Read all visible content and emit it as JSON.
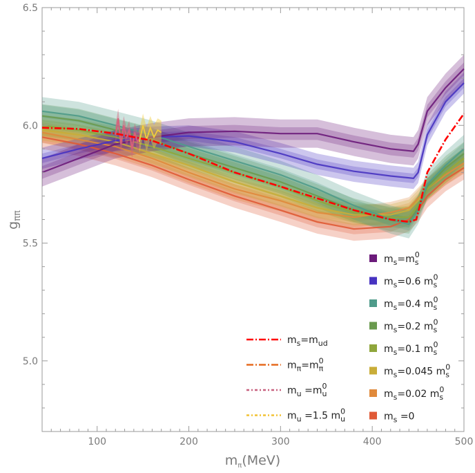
{
  "chart_data": {
    "type": "line",
    "title": "",
    "xlabel": {
      "main": "m",
      "sub": "π",
      "suffix": "(MeV)"
    },
    "ylabel": {
      "main": "g",
      "sub": "ππ"
    },
    "xlim": [
      40,
      500
    ],
    "ylim": [
      4.7,
      6.5
    ],
    "x_ticks": [
      100,
      200,
      300,
      400,
      500
    ],
    "y_ticks": [
      5.0,
      5.5,
      6.0,
      6.5
    ],
    "x_tick_labels": [
      "100",
      "200",
      "300",
      "400",
      "500"
    ],
    "y_tick_labels": [
      "5.0",
      "5.5",
      "6.0",
      "6.5"
    ],
    "grid": false,
    "band_series": [
      {
        "name": "ms=ms0",
        "color": "#6b1a7a",
        "x": [
          40,
          80,
          120,
          160,
          200,
          250,
          300,
          340,
          380,
          420,
          445,
          450,
          460,
          480,
          500
        ],
        "y": [
          5.8,
          5.86,
          5.92,
          5.95,
          5.97,
          5.975,
          5.965,
          5.965,
          5.93,
          5.9,
          5.89,
          5.92,
          6.06,
          6.16,
          6.24
        ],
        "halfwidth": 0.06
      },
      {
        "name": "ms=0.6ms0",
        "color": "#4733c1",
        "x": [
          40,
          80,
          120,
          160,
          200,
          250,
          300,
          340,
          380,
          420,
          445,
          450,
          460,
          480,
          500
        ],
        "y": [
          5.86,
          5.9,
          5.935,
          5.95,
          5.955,
          5.93,
          5.88,
          5.835,
          5.805,
          5.785,
          5.775,
          5.8,
          5.96,
          6.1,
          6.18
        ],
        "halfwidth": 0.045
      },
      {
        "name": "ms=0.4ms0",
        "color": "#4f9b8a",
        "x": [
          40,
          80,
          120,
          160,
          200,
          250,
          300,
          340,
          380,
          420,
          440,
          450,
          460,
          480,
          500
        ],
        "y": [
          6.06,
          6.04,
          6.0,
          5.96,
          5.91,
          5.85,
          5.79,
          5.73,
          5.66,
          5.6,
          5.58,
          5.64,
          5.75,
          5.83,
          5.9
        ],
        "halfwidth": 0.06
      },
      {
        "name": "ms=0.2ms0",
        "color": "#6a9a4e",
        "x": [
          40,
          80,
          120,
          160,
          200,
          250,
          300,
          340,
          380,
          420,
          440,
          450,
          460,
          480,
          500
        ],
        "y": [
          6.04,
          6.02,
          5.98,
          5.94,
          5.88,
          5.82,
          5.76,
          5.7,
          5.64,
          5.6,
          5.59,
          5.65,
          5.74,
          5.82,
          5.88
        ],
        "halfwidth": 0.05
      },
      {
        "name": "ms=0.1ms0",
        "color": "#8fa63c",
        "x": [
          40,
          80,
          120,
          160,
          200,
          250,
          300,
          340,
          380,
          420,
          440,
          450,
          460,
          480,
          500
        ],
        "y": [
          6.0,
          5.98,
          5.95,
          5.91,
          5.86,
          5.8,
          5.74,
          5.68,
          5.63,
          5.61,
          5.61,
          5.66,
          5.73,
          5.8,
          5.86
        ],
        "halfwidth": 0.045
      },
      {
        "name": "ms=0.045ms0",
        "color": "#c9ad38",
        "x": [
          40,
          80,
          120,
          160,
          200,
          250,
          300,
          340,
          380,
          420,
          440,
          450,
          460,
          480,
          500
        ],
        "y": [
          5.98,
          5.96,
          5.93,
          5.88,
          5.83,
          5.76,
          5.7,
          5.65,
          5.62,
          5.62,
          5.64,
          5.68,
          5.73,
          5.8,
          5.86
        ],
        "halfwidth": 0.045
      },
      {
        "name": "ms=0.02ms0",
        "color": "#e08a3c",
        "x": [
          40,
          80,
          120,
          160,
          200,
          250,
          300,
          340,
          380,
          420,
          440,
          450,
          460,
          480,
          500
        ],
        "y": [
          5.97,
          5.94,
          5.91,
          5.86,
          5.8,
          5.73,
          5.68,
          5.63,
          5.61,
          5.63,
          5.65,
          5.69,
          5.73,
          5.79,
          5.84
        ],
        "halfwidth": 0.045
      },
      {
        "name": "ms=0",
        "color": "#e05a36",
        "x": [
          40,
          80,
          120,
          160,
          200,
          250,
          300,
          340,
          380,
          420,
          440,
          450,
          460,
          480,
          500
        ],
        "y": [
          5.95,
          5.92,
          5.88,
          5.83,
          5.77,
          5.7,
          5.64,
          5.59,
          5.56,
          5.57,
          5.6,
          5.64,
          5.7,
          5.77,
          5.82
        ],
        "halfwidth": 0.05
      }
    ],
    "line_series": [
      {
        "name": "ms=mud",
        "color": "#ff0000",
        "dash": "10,3,2,3",
        "width": 2.6,
        "x": [
          40,
          80,
          120,
          160,
          200,
          250,
          300,
          340,
          380,
          420,
          440,
          448,
          452,
          460,
          480,
          500
        ],
        "y": [
          5.99,
          5.985,
          5.965,
          5.935,
          5.88,
          5.8,
          5.74,
          5.69,
          5.64,
          5.6,
          5.59,
          5.6,
          5.66,
          5.8,
          5.94,
          6.05
        ]
      }
    ],
    "wiggle_series": [
      {
        "name": "mu=mu0 band",
        "color": "#d8607a",
        "x": [
          120,
          123,
          126,
          129,
          132,
          135,
          138,
          141,
          144,
          147
        ],
        "y": [
          5.96,
          6.03,
          5.92,
          6.0,
          5.95,
          5.98,
          5.9,
          5.97,
          5.93,
          5.95
        ],
        "halfwidth": 0.04
      },
      {
        "name": "mu=1.5mu0 band",
        "color": "#f2cc3a",
        "x": [
          146,
          150,
          154,
          158,
          162,
          166,
          170
        ],
        "y": [
          5.93,
          6.0,
          5.94,
          5.99,
          5.95,
          5.98,
          5.97
        ],
        "halfwidth": 0.05
      }
    ],
    "legend_right": [
      {
        "base": "m",
        "sub": "s",
        "eq": "=",
        "coef": "",
        "vbase": "m",
        "vsub": "s",
        "vsup": "0",
        "color": "#6b1a7a"
      },
      {
        "base": "m",
        "sub": "s",
        "eq": "=",
        "coef": "0.6 ",
        "vbase": "m",
        "vsub": "s",
        "vsup": "0",
        "color": "#4733c1"
      },
      {
        "base": "m",
        "sub": "s",
        "eq": "=",
        "coef": "0.4 ",
        "vbase": "m",
        "vsub": "s",
        "vsup": "0",
        "color": "#4f9b8a"
      },
      {
        "base": "m",
        "sub": "s",
        "eq": "=",
        "coef": "0.2 ",
        "vbase": "m",
        "vsub": "s",
        "vsup": "0",
        "color": "#6a9a4e"
      },
      {
        "base": "m",
        "sub": "s",
        "eq": "=",
        "coef": "0.1 ",
        "vbase": "m",
        "vsub": "s",
        "vsup": "0",
        "color": "#8fa63c"
      },
      {
        "base": "m",
        "sub": "s",
        "eq": "=",
        "coef": "0.045 ",
        "vbase": "m",
        "vsub": "s",
        "vsup": "0",
        "color": "#c9ad38"
      },
      {
        "base": "m",
        "sub": "s",
        "eq": "=",
        "coef": "0.02 ",
        "vbase": "m",
        "vsub": "s",
        "vsup": "0",
        "color": "#e08a3c"
      },
      {
        "base": "m",
        "sub": "s",
        "eq": " =",
        "coef": "0",
        "vbase": "",
        "vsub": "",
        "vsup": "",
        "color": "#e05a36"
      }
    ],
    "legend_left": [
      {
        "base": "m",
        "sub": "s",
        "eq": "=",
        "coef": "",
        "vbase": "m",
        "vsub": "ud",
        "vsup": "",
        "color": "#ff0000",
        "dash": "10,3,2,3"
      },
      {
        "base": "m",
        "sub": "π",
        "eq": "=",
        "coef": "",
        "vbase": "m",
        "vsub": "π",
        "vsup": "0",
        "color": "#e66a1e",
        "dash": "10,3,2,3"
      },
      {
        "base": "m",
        "sub": "u",
        "eq": " =",
        "coef": "",
        "vbase": "m",
        "vsub": "u",
        "vsup": "0",
        "color": "#c8607e",
        "dash": "4,3,2,3"
      },
      {
        "base": "m",
        "sub": "u",
        "eq": " =",
        "coef": "1.5 ",
        "vbase": "m",
        "vsub": "u",
        "vsup": "0",
        "color": "#f2c232",
        "dash": "4,3,2,3"
      }
    ]
  }
}
